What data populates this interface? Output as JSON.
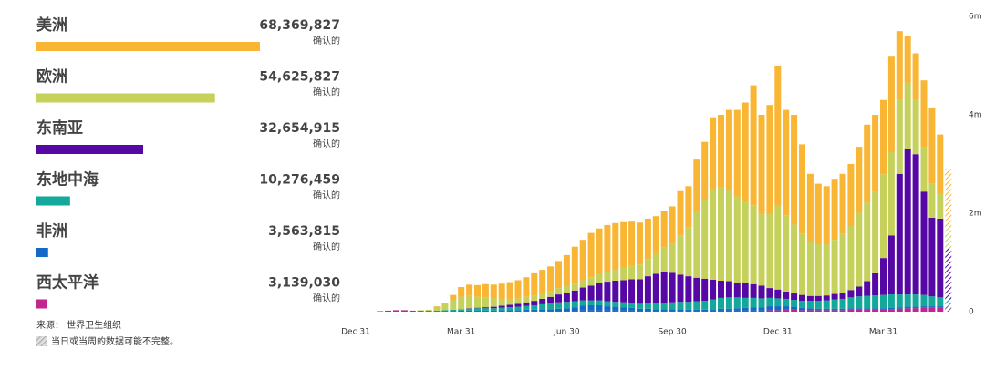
{
  "chart_data": {
    "type": "stacked_bar",
    "total_caption": "确认的",
    "source": "来源： 世界卫生组织",
    "note": "当日或当周的数据可能不完整。",
    "categories": [
      "Dec 31",
      null,
      null,
      null,
      null,
      null,
      null,
      null,
      null,
      null,
      null,
      null,
      null,
      "Mar 31",
      null,
      null,
      null,
      null,
      null,
      null,
      null,
      null,
      null,
      null,
      null,
      null,
      "Jun 30",
      null,
      null,
      null,
      null,
      null,
      null,
      null,
      null,
      null,
      null,
      null,
      null,
      "Sep 30",
      null,
      null,
      null,
      null,
      null,
      null,
      null,
      null,
      null,
      null,
      null,
      null,
      "Dec 31",
      null,
      null,
      null,
      null,
      null,
      null,
      null,
      null,
      null,
      null,
      null,
      null,
      "Mar 31",
      null,
      null,
      null,
      null,
      null,
      null,
      null,
      null
    ],
    "ylim": [
      0,
      6
    ],
    "yticks": [
      0,
      {
        "value": 2,
        "label": "2m"
      },
      {
        "value": 4,
        "label": "4m"
      },
      {
        "value": 6,
        "label": "6m"
      }
    ],
    "series": [
      {
        "name": "美洲",
        "color": "#f9b534",
        "total": 68369827,
        "total_label": "68,369,827",
        "values": [
          0,
          0,
          0,
          0,
          0,
          0,
          0,
          0,
          0,
          0,
          0.01,
          0.03,
          0.1,
          0.2,
          0.23,
          0.24,
          0.27,
          0.28,
          0.31,
          0.34,
          0.37,
          0.4,
          0.45,
          0.47,
          0.5,
          0.55,
          0.63,
          0.75,
          0.82,
          0.9,
          0.93,
          0.95,
          0.95,
          0.93,
          0.9,
          0.85,
          0.82,
          0.77,
          0.74,
          0.75,
          0.9,
          0.83,
          1.05,
          1.18,
          1.45,
          1.47,
          1.63,
          1.76,
          2.02,
          2.44,
          2.02,
          2.22,
          2.85,
          2.14,
          2.23,
          1.81,
          1.38,
          1.23,
          1.17,
          1.24,
          1.22,
          1.26,
          1.34,
          1.58,
          1.57,
          1.51,
          1.95,
          1.4,
          0.95,
          0.95,
          1.36,
          1.54,
          1.21,
          1.21
        ]
      },
      {
        "name": "欧洲",
        "color": "#c5d15b",
        "total": 54625827,
        "total_label": "54,625,827",
        "values": [
          0,
          0,
          0,
          0,
          0,
          0,
          0,
          0,
          0.01,
          0.02,
          0.08,
          0.12,
          0.2,
          0.25,
          0.25,
          0.22,
          0.2,
          0.17,
          0.14,
          0.12,
          0.11,
          0.11,
          0.11,
          0.12,
          0.12,
          0.13,
          0.13,
          0.14,
          0.15,
          0.17,
          0.18,
          0.2,
          0.22,
          0.25,
          0.27,
          0.3,
          0.35,
          0.4,
          0.5,
          0.6,
          0.8,
          1.0,
          1.35,
          1.6,
          1.85,
          1.9,
          1.85,
          1.75,
          1.65,
          1.6,
          1.45,
          1.5,
          1.7,
          1.55,
          1.4,
          1.25,
          1.1,
          1.05,
          1.05,
          1.1,
          1.2,
          1.3,
          1.5,
          1.6,
          1.65,
          1.7,
          1.7,
          1.5,
          1.35,
          1.1,
          0.9,
          0.7,
          0.5,
          0.4
        ]
      },
      {
        "name": "东南亚",
        "color": "#5508a3",
        "total": 32654915,
        "total_label": "32,654,915",
        "values": [
          0,
          0,
          0,
          0,
          0,
          0,
          0,
          0,
          0,
          0,
          0,
          0,
          0,
          0,
          0.01,
          0.01,
          0.02,
          0.03,
          0.04,
          0.05,
          0.06,
          0.07,
          0.09,
          0.11,
          0.13,
          0.16,
          0.19,
          0.22,
          0.26,
          0.3,
          0.35,
          0.4,
          0.43,
          0.45,
          0.48,
          0.5,
          0.55,
          0.6,
          0.62,
          0.6,
          0.55,
          0.52,
          0.48,
          0.45,
          0.4,
          0.35,
          0.33,
          0.3,
          0.3,
          0.28,
          0.26,
          0.2,
          0.18,
          0.15,
          0.13,
          0.12,
          0.1,
          0.1,
          0.1,
          0.11,
          0.12,
          0.15,
          0.2,
          0.3,
          0.45,
          0.75,
          1.2,
          2.45,
          2.95,
          2.85,
          2.1,
          1.6,
          1.6,
          1.05
        ]
      },
      {
        "name": "东地中海",
        "color": "#12a99a",
        "total": 10276459,
        "total_label": "10,276,459",
        "values": [
          0,
          0,
          0,
          0,
          0,
          0,
          0,
          0,
          0.01,
          0.01,
          0.01,
          0.02,
          0.03,
          0.03,
          0.04,
          0.05,
          0.05,
          0.05,
          0.05,
          0.06,
          0.07,
          0.08,
          0.09,
          0.1,
          0.12,
          0.13,
          0.13,
          0.12,
          0.11,
          0.1,
          0.1,
          0.1,
          0.1,
          0.1,
          0.1,
          0.1,
          0.11,
          0.12,
          0.13,
          0.14,
          0.15,
          0.16,
          0.17,
          0.18,
          0.2,
          0.22,
          0.23,
          0.22,
          0.2,
          0.19,
          0.18,
          0.17,
          0.16,
          0.15,
          0.14,
          0.14,
          0.15,
          0.16,
          0.17,
          0.19,
          0.2,
          0.22,
          0.24,
          0.25,
          0.26,
          0.27,
          0.27,
          0.26,
          0.25,
          0.25,
          0.23,
          0.2,
          0.18,
          0.14
        ]
      },
      {
        "name": "非洲",
        "color": "#1468c6",
        "total": 3563815,
        "total_label": "3,563,815",
        "values": [
          0,
          0,
          0,
          0,
          0,
          0,
          0,
          0,
          0,
          0,
          0,
          0,
          0,
          0.01,
          0.01,
          0.01,
          0.01,
          0.01,
          0.02,
          0.02,
          0.02,
          0.03,
          0.03,
          0.04,
          0.04,
          0.05,
          0.06,
          0.08,
          0.1,
          0.11,
          0.11,
          0.09,
          0.08,
          0.07,
          0.06,
          0.05,
          0.05,
          0.04,
          0.04,
          0.04,
          0.04,
          0.03,
          0.03,
          0.03,
          0.03,
          0.04,
          0.04,
          0.05,
          0.06,
          0.07,
          0.07,
          0.08,
          0.08,
          0.07,
          0.06,
          0.05,
          0.04,
          0.03,
          0.03,
          0.03,
          0.03,
          0.03,
          0.03,
          0.03,
          0.03,
          0.03,
          0.03,
          0.03,
          0.03,
          0.03,
          0.03,
          0.03,
          0.03,
          0.03
        ]
      },
      {
        "name": "西太平洋",
        "color": "#c2258f",
        "total": 3139030,
        "total_label": "3,139,030",
        "values": [
          0,
          0,
          0,
          0.01,
          0.02,
          0.03,
          0.03,
          0.02,
          0.01,
          0.01,
          0.01,
          0.01,
          0.01,
          0.01,
          0.01,
          0.01,
          0.01,
          0.01,
          0.01,
          0.01,
          0.01,
          0.01,
          0.01,
          0.01,
          0.01,
          0.01,
          0.01,
          0.01,
          0.02,
          0.02,
          0.02,
          0.02,
          0.02,
          0.02,
          0.02,
          0.01,
          0.01,
          0.01,
          0.01,
          0.01,
          0.01,
          0.01,
          0.01,
          0.01,
          0.02,
          0.02,
          0.02,
          0.02,
          0.02,
          0.02,
          0.02,
          0.03,
          0.03,
          0.04,
          0.04,
          0.03,
          0.03,
          0.03,
          0.03,
          0.03,
          0.03,
          0.04,
          0.04,
          0.04,
          0.04,
          0.04,
          0.05,
          0.06,
          0.07,
          0.07,
          0.08,
          0.08,
          0.08,
          0.07
        ]
      }
    ]
  }
}
